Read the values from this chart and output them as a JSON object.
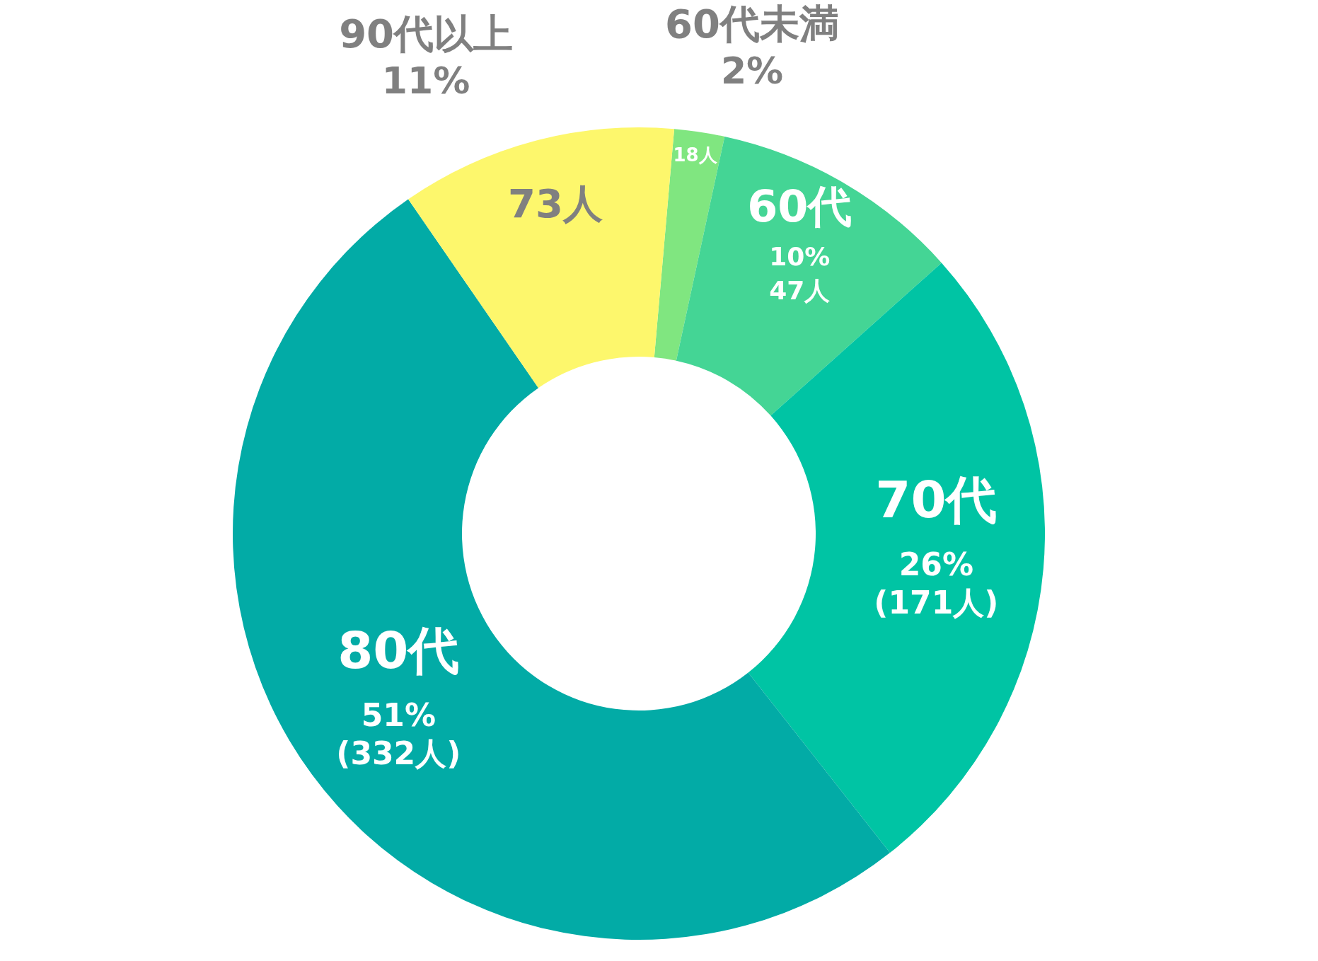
{
  "chart_data": {
    "type": "donut",
    "categories": [
      "60代未満",
      "60代",
      "70代",
      "80代",
      "90代以上"
    ],
    "values": [
      2,
      10,
      26,
      51,
      11
    ],
    "colors": [
      "#80e680",
      "#44d595",
      "#00c4a4",
      "#02aba6",
      "#fdf76c"
    ],
    "value_labels": [
      "2%",
      "10%",
      "26%",
      "51%",
      "11%"
    ],
    "annotations": [
      {
        "text": "18人",
        "x": "60代未満"
      },
      {
        "text": "47人",
        "x": "60代"
      },
      {
        "text": "(171人)",
        "x": "70代"
      },
      {
        "text": "(332人)",
        "x": "80代"
      },
      {
        "text": "73人",
        "x": "90代以上"
      }
    ]
  }
}
